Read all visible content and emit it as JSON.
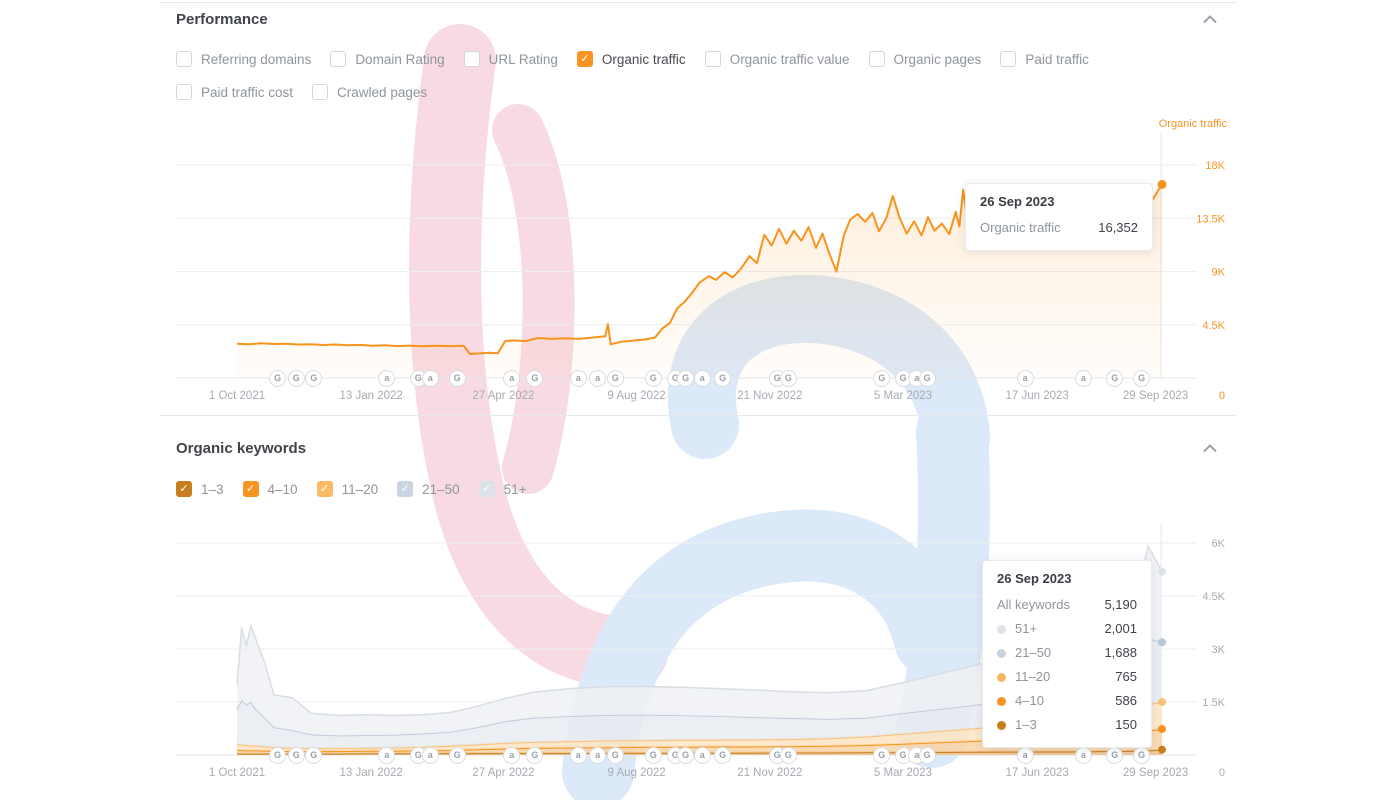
{
  "performance": {
    "title": "Performance",
    "metrics": [
      {
        "label": "Referring domains",
        "checked": false,
        "row": 1
      },
      {
        "label": "Domain Rating",
        "checked": false,
        "row": 1
      },
      {
        "label": "URL Rating",
        "checked": false,
        "row": 1
      },
      {
        "label": "Organic traffic",
        "checked": true,
        "color": "#f79422",
        "row": 1
      },
      {
        "label": "Organic traffic value",
        "checked": false,
        "row": 1
      },
      {
        "label": "Organic pages",
        "checked": false,
        "row": 1
      },
      {
        "label": "Paid traffic",
        "checked": false,
        "row": 1
      },
      {
        "label": "Paid traffic cost",
        "checked": false,
        "row": 2
      },
      {
        "label": "Crawled pages",
        "checked": false,
        "row": 2
      }
    ],
    "tooltip": {
      "date": "26 Sep 2023",
      "label": "Organic traffic",
      "value": "16,352"
    }
  },
  "keywords": {
    "title": "Organic keywords",
    "filters": [
      {
        "label": "1–3",
        "checked": true,
        "color": "#c87d1e"
      },
      {
        "label": "4–10",
        "checked": true,
        "color": "#f79422"
      },
      {
        "label": "11–20",
        "checked": true,
        "color": "#fbbb64"
      },
      {
        "label": "21–50",
        "checked": true,
        "color": "#ccd5e2"
      },
      {
        "label": "51+",
        "checked": true,
        "color": "#dde1e8"
      }
    ],
    "tooltip": {
      "date": "26 Sep 2023",
      "total_label": "All keywords",
      "total": "5,190",
      "rows": [
        {
          "label": "51+",
          "value": "2,001",
          "color": "#dfe3e9"
        },
        {
          "label": "21–50",
          "value": "1,688",
          "color": "#c9d2df"
        },
        {
          "label": "11–20",
          "value": "765",
          "color": "#f9b75d"
        },
        {
          "label": "4–10",
          "value": "586",
          "color": "#f79422"
        },
        {
          "label": "1–3",
          "value": "150",
          "color": "#c87d1e"
        }
      ]
    }
  },
  "axis_events": [
    {
      "t": 0.044,
      "k": "G"
    },
    {
      "t": 0.064,
      "k": "G"
    },
    {
      "t": 0.083,
      "k": "G"
    },
    {
      "t": 0.162,
      "k": "a"
    },
    {
      "t": 0.196,
      "k": "G"
    },
    {
      "t": 0.209,
      "k": "a"
    },
    {
      "t": 0.238,
      "k": "G"
    },
    {
      "t": 0.297,
      "k": "a"
    },
    {
      "t": 0.322,
      "k": "G"
    },
    {
      "t": 0.369,
      "k": "a"
    },
    {
      "t": 0.39,
      "k": "a"
    },
    {
      "t": 0.409,
      "k": "G"
    },
    {
      "t": 0.45,
      "k": "G"
    },
    {
      "t": 0.474,
      "k": "G"
    },
    {
      "t": 0.485,
      "k": "G"
    },
    {
      "t": 0.503,
      "k": "a"
    },
    {
      "t": 0.525,
      "k": "G"
    },
    {
      "t": 0.584,
      "k": "G"
    },
    {
      "t": 0.596,
      "k": "G"
    },
    {
      "t": 0.697,
      "k": "G"
    },
    {
      "t": 0.72,
      "k": "G"
    },
    {
      "t": 0.735,
      "k": "a"
    },
    {
      "t": 0.746,
      "k": "G"
    },
    {
      "t": 0.852,
      "k": "a"
    },
    {
      "t": 0.915,
      "k": "a"
    },
    {
      "t": 0.949,
      "k": "G"
    },
    {
      "t": 0.978,
      "k": "G"
    }
  ],
  "chart_data": [
    {
      "type": "area",
      "title": "Organic traffic",
      "ylabel": "Organic traffic",
      "ylim": [
        0,
        18000
      ],
      "grid": true,
      "line_color": "#f7941e",
      "tick_color": "#f59426",
      "end_dot": {
        "t": 1,
        "v": 16352,
        "color": "#f7941e"
      },
      "yticks": [
        {
          "v": 18000,
          "label": "18K"
        },
        {
          "v": 13500,
          "label": "13.5K"
        },
        {
          "v": 9000,
          "label": "9K"
        },
        {
          "v": 4500,
          "label": "4.5K"
        },
        {
          "v": 0,
          "label": "0"
        }
      ],
      "xticks": [
        {
          "t": 0.0,
          "label": "1 Oct 2021"
        },
        {
          "t": 0.145,
          "label": "13 Jan 2022"
        },
        {
          "t": 0.288,
          "label": "27 Apr 2022"
        },
        {
          "t": 0.432,
          "label": "9 Aug 2022"
        },
        {
          "t": 0.576,
          "label": "21 Nov 2022"
        },
        {
          "t": 0.72,
          "label": "5 Mar 2023"
        },
        {
          "t": 0.865,
          "label": "17 Jun 2023"
        },
        {
          "t": 0.993,
          "label": "29 Sep 2023"
        }
      ],
      "points": [
        [
          0,
          2900
        ],
        [
          0.013,
          2860
        ],
        [
          0.026,
          2930
        ],
        [
          0.04,
          2870
        ],
        [
          0.053,
          2900
        ],
        [
          0.066,
          2830
        ],
        [
          0.08,
          2860
        ],
        [
          0.093,
          2790
        ],
        [
          0.106,
          2830
        ],
        [
          0.12,
          2760
        ],
        [
          0.133,
          2800
        ],
        [
          0.146,
          2720
        ],
        [
          0.16,
          2760
        ],
        [
          0.173,
          2700
        ],
        [
          0.186,
          2740
        ],
        [
          0.2,
          2690
        ],
        [
          0.215,
          2730
        ],
        [
          0.23,
          2700
        ],
        [
          0.245,
          2720
        ],
        [
          0.252,
          2030
        ],
        [
          0.262,
          2080
        ],
        [
          0.272,
          2130
        ],
        [
          0.282,
          2100
        ],
        [
          0.29,
          3130
        ],
        [
          0.3,
          3180
        ],
        [
          0.312,
          3120
        ],
        [
          0.325,
          3380
        ],
        [
          0.34,
          3300
        ],
        [
          0.355,
          3360
        ],
        [
          0.37,
          3300
        ],
        [
          0.385,
          3420
        ],
        [
          0.398,
          3520
        ],
        [
          0.401,
          4550
        ],
        [
          0.404,
          2850
        ],
        [
          0.415,
          3060
        ],
        [
          0.428,
          3160
        ],
        [
          0.442,
          3260
        ],
        [
          0.452,
          3420
        ],
        [
          0.46,
          4200
        ],
        [
          0.468,
          4650
        ],
        [
          0.476,
          5900
        ],
        [
          0.484,
          6450
        ],
        [
          0.492,
          7200
        ],
        [
          0.5,
          8050
        ],
        [
          0.51,
          8600
        ],
        [
          0.518,
          8300
        ],
        [
          0.527,
          8950
        ],
        [
          0.536,
          8500
        ],
        [
          0.545,
          9250
        ],
        [
          0.554,
          10300
        ],
        [
          0.562,
          9700
        ],
        [
          0.57,
          12100
        ],
        [
          0.578,
          11200
        ],
        [
          0.586,
          12600
        ],
        [
          0.594,
          11350
        ],
        [
          0.602,
          12450
        ],
        [
          0.61,
          11600
        ],
        [
          0.618,
          12750
        ],
        [
          0.626,
          11000
        ],
        [
          0.633,
          12200
        ],
        [
          0.64,
          10600
        ],
        [
          0.648,
          9000
        ],
        [
          0.656,
          12050
        ],
        [
          0.663,
          13400
        ],
        [
          0.671,
          13850
        ],
        [
          0.679,
          13200
        ],
        [
          0.687,
          13950
        ],
        [
          0.694,
          12400
        ],
        [
          0.702,
          13500
        ],
        [
          0.709,
          15400
        ],
        [
          0.716,
          13600
        ],
        [
          0.724,
          12200
        ],
        [
          0.732,
          13250
        ],
        [
          0.74,
          12050
        ],
        [
          0.747,
          13600
        ],
        [
          0.754,
          12450
        ],
        [
          0.762,
          13050
        ],
        [
          0.77,
          12150
        ],
        [
          0.777,
          14050
        ],
        [
          0.781,
          12800
        ],
        [
          0.785,
          15900
        ],
        [
          0.79,
          13100
        ],
        [
          0.8,
          11350
        ],
        [
          0.812,
          11150
        ],
        [
          0.824,
          11300
        ],
        [
          0.836,
          11050
        ],
        [
          0.848,
          11300
        ],
        [
          0.86,
          11150
        ],
        [
          0.872,
          11400
        ],
        [
          0.884,
          11200
        ],
        [
          0.896,
          11350
        ],
        [
          0.908,
          11200
        ],
        [
          0.92,
          11400
        ],
        [
          0.932,
          11300
        ],
        [
          0.944,
          11500
        ],
        [
          0.956,
          11450
        ],
        [
          0.966,
          13300
        ],
        [
          0.972,
          13900
        ],
        [
          0.978,
          14150
        ],
        [
          0.984,
          14400
        ],
        [
          0.99,
          15100
        ],
        [
          0.995,
          15750
        ],
        [
          1,
          16352
        ]
      ]
    },
    {
      "type": "stacked_area",
      "title": "Organic keywords by position",
      "ylim": [
        0,
        6000
      ],
      "tick_color": "#a6abb2",
      "yticks": [
        {
          "v": 6000,
          "label": "6K"
        },
        {
          "v": 4500,
          "label": "4.5K"
        },
        {
          "v": 3000,
          "label": "3K"
        },
        {
          "v": 1500,
          "label": "1.5K"
        },
        {
          "v": 0,
          "label": "0"
        }
      ],
      "xticks": [
        {
          "t": 0.0,
          "label": "1 Oct 2021"
        },
        {
          "t": 0.145,
          "label": "13 Jan 2022"
        },
        {
          "t": 0.288,
          "label": "27 Apr 2022"
        },
        {
          "t": 0.432,
          "label": "9 Aug 2022"
        },
        {
          "t": 0.576,
          "label": "21 Nov 2022"
        },
        {
          "t": 0.72,
          "label": "5 Mar 2023"
        },
        {
          "t": 0.865,
          "label": "17 Jun 2023"
        },
        {
          "t": 0.993,
          "label": "29 Sep 2023"
        }
      ],
      "t": [
        0,
        0.005,
        0.01,
        0.015,
        0.02,
        0.03,
        0.04,
        0.06,
        0.08,
        0.11,
        0.14,
        0.17,
        0.2,
        0.23,
        0.26,
        0.29,
        0.32,
        0.36,
        0.4,
        0.44,
        0.48,
        0.52,
        0.56,
        0.6,
        0.64,
        0.68,
        0.72,
        0.76,
        0.8,
        0.84,
        0.88,
        0.91,
        0.935,
        0.955,
        0.97,
        0.985,
        1
      ],
      "series": [
        {
          "name": "1–3",
          "line": "#c87d1e",
          "fill": "#f0c08a",
          "end_value": 150,
          "cum": [
            40,
            40,
            40,
            40,
            40,
            40,
            40,
            40,
            40,
            40,
            45,
            45,
            50,
            50,
            50,
            50,
            55,
            55,
            60,
            60,
            60,
            65,
            65,
            70,
            70,
            75,
            80,
            85,
            90,
            95,
            100,
            100,
            110,
            110,
            120,
            130,
            150
          ]
        },
        {
          "name": "4–10",
          "line": "#f7941e",
          "fill": "#f9d3a4",
          "end_value": 736,
          "cum": [
            140,
            140,
            130,
            130,
            130,
            120,
            120,
            110,
            110,
            110,
            120,
            120,
            130,
            140,
            160,
            180,
            200,
            210,
            220,
            230,
            230,
            240,
            240,
            250,
            260,
            280,
            320,
            360,
            400,
            440,
            480,
            520,
            560,
            600,
            640,
            690,
            736
          ]
        },
        {
          "name": "11–20",
          "line": "#fbc178",
          "fill": "#fde4c2",
          "end_value": 1501,
          "cum": [
            300,
            300,
            280,
            270,
            260,
            240,
            220,
            200,
            190,
            190,
            200,
            210,
            230,
            260,
            300,
            340,
            370,
            390,
            410,
            420,
            430,
            430,
            440,
            450,
            470,
            520,
            600,
            680,
            760,
            850,
            950,
            1050,
            1150,
            1250,
            1350,
            1440,
            1501
          ]
        },
        {
          "name": "21–50",
          "line": "#b9c6d8",
          "fill": "#e7ebf1",
          "end_value": 3189,
          "cum": [
            1300,
            1550,
            1420,
            1500,
            1300,
            1050,
            780,
            700,
            580,
            550,
            560,
            570,
            600,
            650,
            780,
            950,
            1050,
            1100,
            1130,
            1140,
            1120,
            1100,
            1070,
            1040,
            1020,
            1050,
            1180,
            1300,
            1420,
            1550,
            1700,
            1850,
            2000,
            2150,
            2450,
            3300,
            3190
          ]
        },
        {
          "name": "51+",
          "line": "#d8dde4",
          "fill": "#eff1f5",
          "end_value": 5190,
          "cum": [
            2000,
            3600,
            3100,
            3650,
            3300,
            2600,
            1700,
            1620,
            1180,
            1120,
            1140,
            1120,
            1140,
            1200,
            1380,
            1600,
            1780,
            1880,
            1930,
            1940,
            1920,
            1880,
            1840,
            1790,
            1760,
            1820,
            2050,
            2300,
            2550,
            2800,
            3050,
            3250,
            3500,
            3600,
            4200,
            5900,
            5190
          ]
        }
      ]
    }
  ]
}
